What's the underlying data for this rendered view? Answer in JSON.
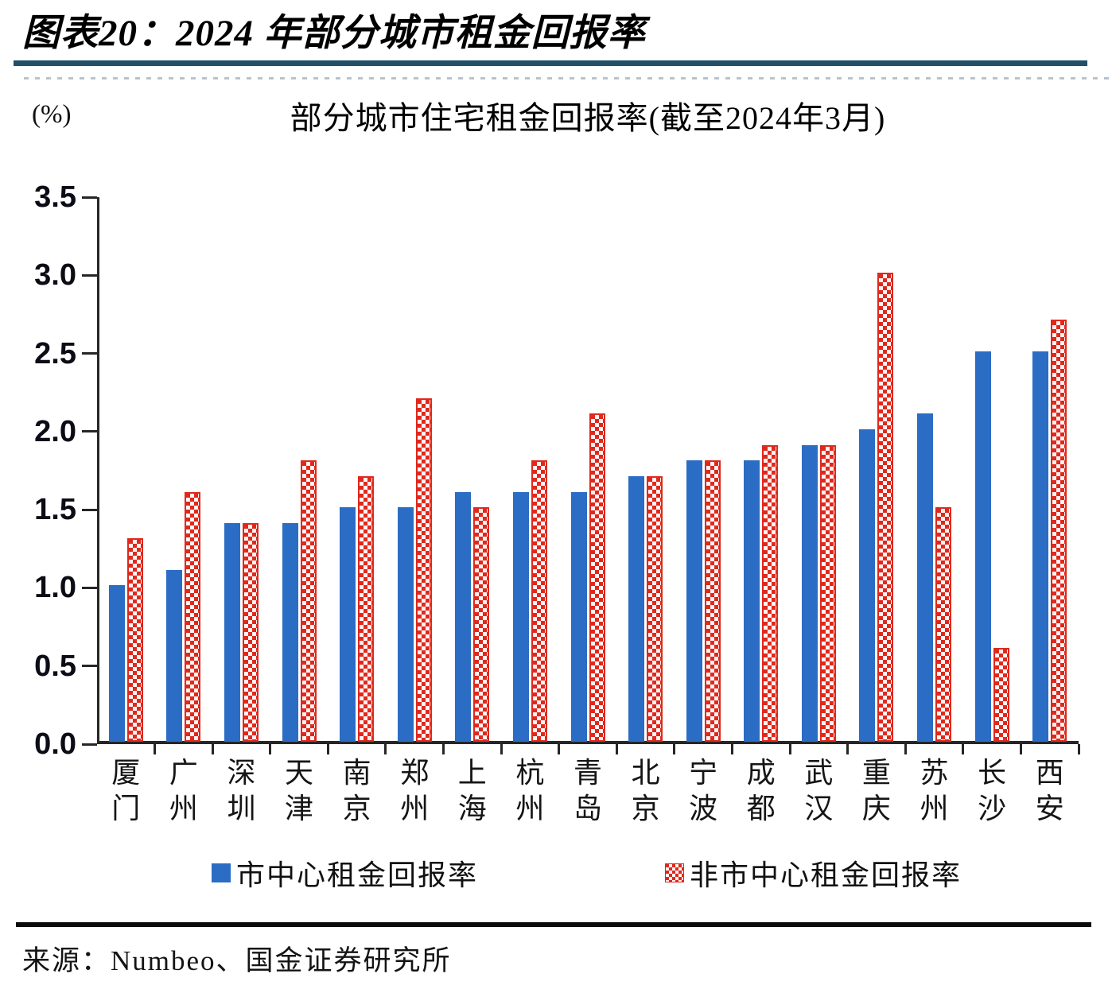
{
  "header": {
    "title": "图表20：2024 年部分城市租金回报率"
  },
  "chart": {
    "unit_label": "(%)",
    "title": "部分城市住宅租金回报率(截至2024年3月)",
    "legend": [
      "市中心租金回报率",
      "非市中心租金回报率"
    ]
  },
  "chart_data": {
    "type": "bar",
    "title": "部分城市住宅租金回报率(截至2024年3月)",
    "unit": "%",
    "categories": [
      "厦门",
      "广州",
      "深圳",
      "天津",
      "南京",
      "郑州",
      "上海",
      "杭州",
      "青岛",
      "北京",
      "宁波",
      "成都",
      "武汉",
      "重庆",
      "苏州",
      "长沙",
      "西安"
    ],
    "series": [
      {
        "name": "市中心租金回报率",
        "style": "solid-blue",
        "values": [
          1.0,
          1.1,
          1.4,
          1.4,
          1.5,
          1.5,
          1.6,
          1.6,
          1.6,
          1.7,
          1.8,
          1.8,
          1.9,
          2.0,
          2.1,
          2.5,
          2.5
        ]
      },
      {
        "name": "非市中心租金回报率",
        "style": "red-white-diamond-trellis",
        "values": [
          1.3,
          1.6,
          1.4,
          1.8,
          1.7,
          2.2,
          1.5,
          1.8,
          2.1,
          1.7,
          1.8,
          1.9,
          1.9,
          3.0,
          1.5,
          0.6,
          2.7
        ]
      }
    ],
    "ylim": [
      0,
      3.5
    ],
    "ytick_step": 0.5,
    "ytick_labels": [
      "0.0",
      "0.5",
      "1.0",
      "1.5",
      "2.0",
      "2.5",
      "3.0",
      "3.5"
    ],
    "grid": false,
    "legend_position": "bottom"
  },
  "footer": {
    "source": "来源：Numbeo、国金证券研究所"
  },
  "colors": {
    "bar_blue": "#2b6cc4",
    "bar_red": "#e0281c",
    "header_rule": "#214f68",
    "footer_rule": "#0b0b0b",
    "axis": "#262626"
  }
}
